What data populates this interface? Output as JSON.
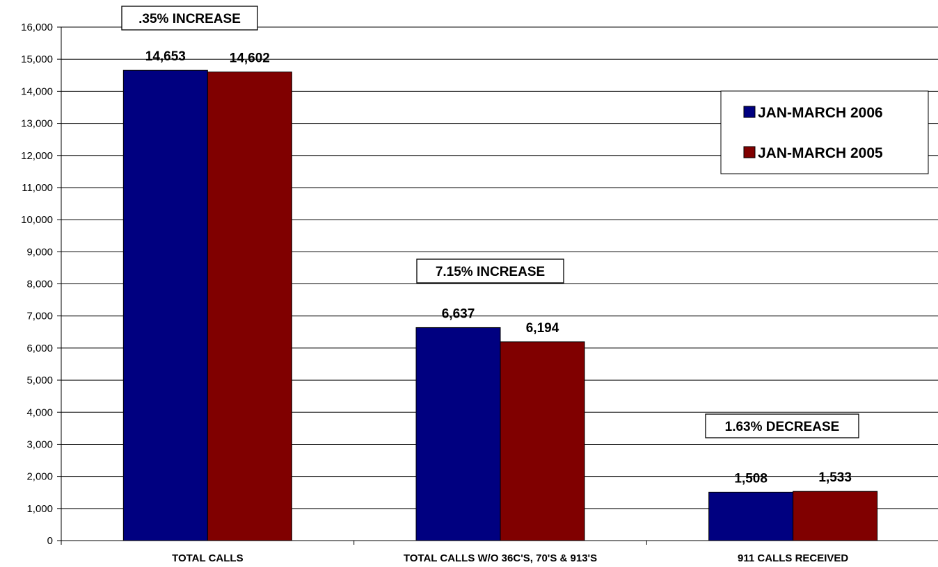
{
  "chart_data": {
    "type": "bar",
    "categories": [
      "TOTAL CALLS",
      "TOTAL CALLS W/O 36C'S, 70'S & 913'S",
      "911 CALLS RECEIVED"
    ],
    "series": [
      {
        "name": "JAN-MARCH 2006",
        "values": [
          14653,
          6637,
          1508
        ],
        "labels": [
          "14,653",
          "6,637",
          "1,508"
        ],
        "color": "#000080"
      },
      {
        "name": "JAN-MARCH 2005",
        "values": [
          14602,
          6194,
          1533
        ],
        "labels": [
          "14,602",
          "6,194",
          "1,533"
        ],
        "color": "#800000"
      }
    ],
    "annotations": [
      ".35% INCREASE",
      "7.15% INCREASE",
      "1.63% DECREASE"
    ],
    "ylim": [
      0,
      16000
    ],
    "ytick_step": 1000,
    "ytick_labels": [
      "0",
      "1,000",
      "2,000",
      "3,000",
      "4,000",
      "5,000",
      "6,000",
      "7,000",
      "8,000",
      "9,000",
      "10,000",
      "11,000",
      "12,000",
      "13,000",
      "14,000",
      "15,000",
      "16,000"
    ],
    "grid": true,
    "legend_position": "top-right"
  }
}
